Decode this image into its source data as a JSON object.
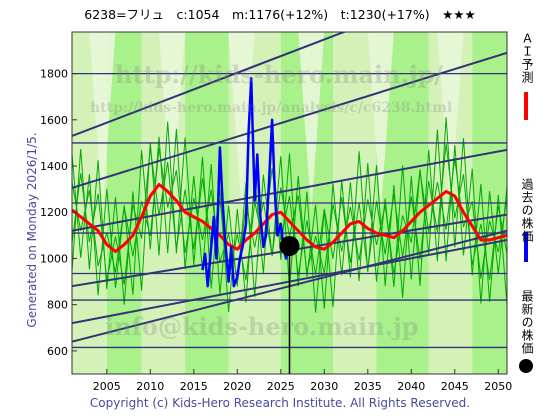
{
  "header": {
    "title": "6238=フリュ　c:1054　m:1176(+12%)　t:1230(+17%)　★★★"
  },
  "side_label": "Generated on Monday 2026/1/5.",
  "footer": "Copyright (c) Kids-Hero Research Institute. All Rights Reserved.",
  "watermarks": {
    "top": "http://kids-hero.main.jp/",
    "middle": "http://kids-hero.main.jp/analysis/c/c6238.html",
    "bottom": "info@kids-hero.main.jp"
  },
  "legend": [
    {
      "label": "ＡＩ予測",
      "color": "#ff0000"
    },
    {
      "label": "過去の株価",
      "color": "#0000ff"
    },
    {
      "label": "最新の株価",
      "color": "#000000"
    }
  ],
  "colors": {
    "band_green": "#99ee77",
    "band_light": "#ccf0aa",
    "thin_green": "#00aa00",
    "trend_line": "#333377",
    "frame": "#333333"
  },
  "chart_data": {
    "type": "line",
    "title": "6238=フリュ　c:1054　m:1176(+12%)　t:1230(+17%)　★★★",
    "xlim": [
      2001,
      2051
    ],
    "ylim": [
      500,
      1980
    ],
    "xticks": [
      2005,
      2010,
      2015,
      2020,
      2025,
      2030,
      2035,
      2040,
      2045,
      2050
    ],
    "yticks": [
      600,
      800,
      1000,
      1200,
      1400,
      1600,
      1800
    ],
    "grid": false,
    "legend_placement": "right, vertical",
    "latest": {
      "x": 2026.0,
      "y": 1054
    },
    "series": [
      {
        "name": "ＡＩ予測",
        "color": "#ff0000",
        "x": [
          2001,
          2002,
          2003,
          2004,
          2005,
          2006,
          2007,
          2008,
          2009,
          2010,
          2011,
          2012,
          2013,
          2014,
          2015,
          2016,
          2017,
          2018,
          2019,
          2020,
          2021,
          2022,
          2023,
          2024,
          2025,
          2026,
          2027,
          2028,
          2029,
          2030,
          2031,
          2032,
          2033,
          2034,
          2035,
          2036,
          2037,
          2038,
          2039,
          2040,
          2041,
          2042,
          2043,
          2044,
          2045,
          2046,
          2047,
          2048,
          2049,
          2050,
          2051
        ],
        "y": [
          1210,
          1180,
          1150,
          1120,
          1060,
          1030,
          1060,
          1100,
          1180,
          1270,
          1320,
          1290,
          1250,
          1200,
          1180,
          1160,
          1130,
          1100,
          1060,
          1040,
          1080,
          1110,
          1150,
          1190,
          1200,
          1160,
          1120,
          1080,
          1050,
          1040,
          1070,
          1110,
          1150,
          1160,
          1130,
          1110,
          1100,
          1090,
          1120,
          1160,
          1200,
          1230,
          1260,
          1290,
          1270,
          1200,
          1140,
          1080,
          1080,
          1090,
          1100
        ]
      },
      {
        "name": "過去の株価",
        "color": "#0000ff",
        "x": [
          2016.0,
          2016.3,
          2016.6,
          2017.0,
          2017.3,
          2017.6,
          2018.0,
          2018.3,
          2018.6,
          2019.0,
          2019.3,
          2019.6,
          2020.0,
          2020.3,
          2020.6,
          2021.0,
          2021.3,
          2021.6,
          2022.0,
          2022.3,
          2022.6,
          2023.0,
          2023.3,
          2023.6,
          2024.0,
          2024.3,
          2024.6,
          2025.0,
          2025.3,
          2025.6,
          2026.0
        ],
        "y": [
          950,
          1020,
          880,
          1050,
          1180,
          1000,
          1480,
          1250,
          1080,
          900,
          1050,
          880,
          920,
          1000,
          1050,
          1150,
          1550,
          1780,
          1250,
          1450,
          1200,
          1050,
          1100,
          1300,
          1600,
          1300,
          1100,
          1150,
          1050,
          1000,
          1054
        ]
      }
    ],
    "trend_lines": [
      {
        "x": [
          2001,
          2051
        ],
        "y": [
          1530,
          2250
        ]
      },
      {
        "x": [
          2001,
          2051
        ],
        "y": [
          1305,
          1890
        ]
      },
      {
        "x": [
          2001,
          2051
        ],
        "y": [
          1120,
          1470
        ]
      },
      {
        "x": [
          2001,
          2051
        ],
        "y": [
          880,
          1190
        ]
      },
      {
        "x": [
          2001,
          2051
        ],
        "y": [
          720,
          1080
        ]
      },
      {
        "x": [
          2001,
          2051
        ],
        "y": [
          640,
          1120
        ]
      }
    ],
    "hlines": [
      1800,
      1500,
      1240,
      1110,
      935,
      820,
      615
    ]
  }
}
